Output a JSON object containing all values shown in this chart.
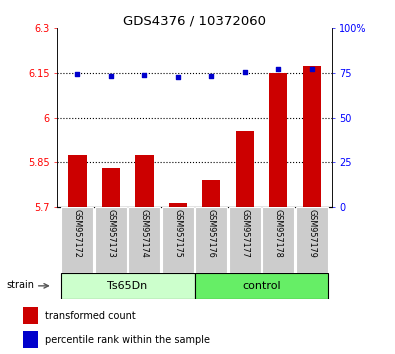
{
  "title": "GDS4376 / 10372060",
  "samples": [
    "GSM957172",
    "GSM957173",
    "GSM957174",
    "GSM957175",
    "GSM957176",
    "GSM957177",
    "GSM957178",
    "GSM957179"
  ],
  "transformed_counts": [
    5.875,
    5.83,
    5.875,
    5.715,
    5.79,
    5.955,
    6.15,
    6.175
  ],
  "percentile_ranks": [
    74.5,
    73.5,
    74.0,
    73.0,
    73.5,
    75.5,
    77.0,
    77.5
  ],
  "groups": [
    "Ts65Dn",
    "Ts65Dn",
    "Ts65Dn",
    "Ts65Dn",
    "control",
    "control",
    "control",
    "control"
  ],
  "ylim_left": [
    5.7,
    6.3
  ],
  "ylim_right": [
    0,
    100
  ],
  "yticks_left": [
    5.7,
    5.85,
    6.0,
    6.15,
    6.3
  ],
  "ytick_labels_left": [
    "5.7",
    "5.85",
    "6",
    "6.15",
    "6.3"
  ],
  "yticks_right": [
    0,
    25,
    50,
    75,
    100
  ],
  "ytick_labels_right": [
    "0",
    "25",
    "50",
    "75",
    "100%"
  ],
  "bar_color": "#cc0000",
  "dot_color": "#0000cc",
  "bar_width": 0.55,
  "grid_lines": [
    5.85,
    6.0,
    6.15
  ],
  "strain_label": "strain",
  "legend_items": [
    "transformed count",
    "percentile rank within the sample"
  ],
  "color_ts65dn": "#ccffcc",
  "color_control": "#66ee66",
  "color_gray": "#cccccc"
}
